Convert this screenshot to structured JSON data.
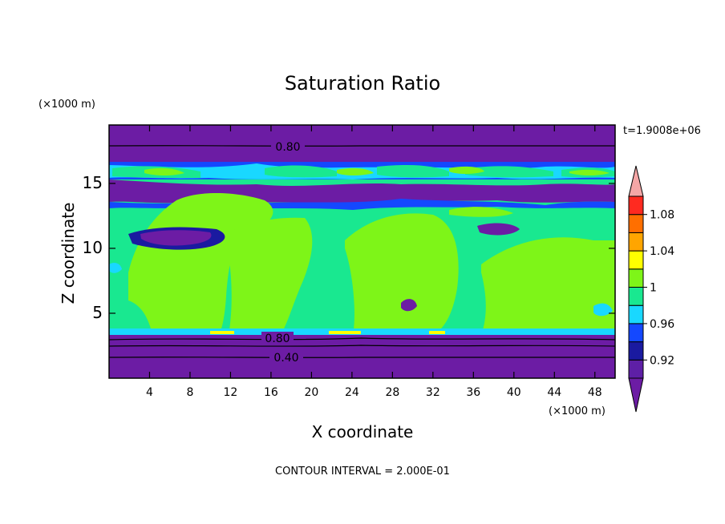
{
  "chart_data": {
    "type": "heatmap",
    "title": "Saturation Ratio",
    "xlabel": "X coordinate",
    "ylabel": "Z coordinate",
    "x_unit": "(×1000 m)",
    "y_unit": "(×1000 m)",
    "time_label": "t=1.9008e+06",
    "footer": "CONTOUR INTERVAL = 2.000E-01",
    "xlim": [
      0,
      50
    ],
    "ylim": [
      0,
      19.5
    ],
    "x_ticks": [
      4,
      8,
      12,
      16,
      20,
      24,
      28,
      32,
      36,
      40,
      44,
      48
    ],
    "y_ticks": [
      5,
      10,
      15
    ],
    "contour_labels": [
      {
        "text": "0.80",
        "x": 17.5,
        "z": 18.3
      },
      {
        "text": "0.80",
        "x": 16.5,
        "z": 3.1
      },
      {
        "text": "0.40",
        "x": 17.5,
        "z": 1.6
      }
    ],
    "colorbar": {
      "levels": [
        0.9,
        0.92,
        0.94,
        0.96,
        0.98,
        1.0,
        1.02,
        1.04,
        1.06,
        1.08,
        1.1
      ],
      "tick_labels": [
        "0.92",
        "0.96",
        "1",
        "1.04",
        "1.08"
      ],
      "colors": [
        "#5e1fa6",
        "#1a1aa0",
        "#1448ff",
        "#19d8ff",
        "#19e890",
        "#7ef518",
        "#ffff00",
        "#ffa500",
        "#ff6f00",
        "#ff2a20"
      ],
      "under_color": "#6c1ca4",
      "over_color": "#f4a6a6"
    },
    "bands": [
      {
        "z0": 18.0,
        "z1": 19.5,
        "level": "<0.90"
      },
      {
        "z0": 16.0,
        "z1": 17.0,
        "level": "0.96-1.00"
      },
      {
        "z0": 14.0,
        "z1": 15.5,
        "level": "<0.90"
      },
      {
        "z0": 4.0,
        "z1": 14.0,
        "level": "0.98-1.02"
      },
      {
        "z0": 0.0,
        "z1": 3.3,
        "level": "<0.80"
      }
    ]
  }
}
